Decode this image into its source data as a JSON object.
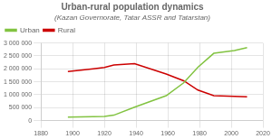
{
  "chart_data": {
    "type": "line",
    "title": "Urban-rural population dynamics",
    "subtitle": "(Kazan Governorate, Tatar ASSR and Tatarstan)",
    "x": [
      1897,
      1913,
      1920,
      1926,
      1939,
      1959,
      1970,
      1979,
      1989,
      2002,
      2010
    ],
    "series": [
      {
        "name": "Urban",
        "color": "#82c341",
        "values": [
          130000,
          150000,
          160000,
          210000,
          520000,
          960000,
          1460000,
          2060000,
          2600000,
          2710000,
          2820000
        ]
      },
      {
        "name": "Rural",
        "color": "#cc0000",
        "values": [
          1900000,
          2000000,
          2050000,
          2150000,
          2200000,
          1800000,
          1540000,
          1180000,
          960000,
          940000,
          920000
        ]
      }
    ],
    "xlim": [
      1880,
      2020
    ],
    "ylim": [
      0,
      3000000
    ],
    "xticks": [
      1880,
      1900,
      1920,
      1940,
      1960,
      1980,
      2000,
      2020
    ],
    "yticks": [
      0,
      {
        "value": 500000,
        "label": "500 000"
      },
      {
        "value": 1000000,
        "label": "1 000 000"
      },
      {
        "value": 1500000,
        "label": "1 500 000"
      },
      {
        "value": 2000000,
        "label": "2 000 000"
      },
      {
        "value": 2500000,
        "label": "2 500 000"
      },
      {
        "value": 3000000,
        "label": "3 000 000"
      }
    ],
    "grid": true,
    "legend": "upper left"
  }
}
